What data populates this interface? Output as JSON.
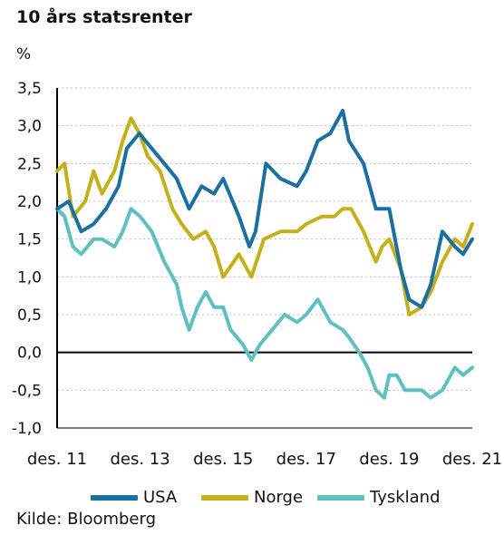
{
  "title": "10 års statsrenter",
  "unit": "%",
  "source": "Kilde: Bloomberg",
  "colors": {
    "USA": "#1a6fa3",
    "Norge": "#c4b11a",
    "Tyskland": "#5fc1bd",
    "grid": "#bdbdbd",
    "zero": "#000000"
  },
  "chart_data": {
    "type": "line",
    "title": "10 års statsrenter",
    "ylabel": "%",
    "xlabel": "",
    "ylim": [
      -1.0,
      3.5
    ],
    "yticks": [
      "3,5",
      "3,0",
      "2,5",
      "2,0",
      "1,5",
      "1,0",
      "0,5",
      "0,0",
      "-0,5",
      "-1,0"
    ],
    "ytick_values": [
      3.5,
      3.0,
      2.5,
      2.0,
      1.5,
      1.0,
      0.5,
      0.0,
      -0.5,
      -1.0
    ],
    "xticks": [
      "des. 11",
      "des. 13",
      "des. 15",
      "des. 17",
      "des. 19",
      "des. 21"
    ],
    "xlim": [
      2011.92,
      2021.92
    ],
    "grid": "horizontal dashed",
    "legend": "bottom",
    "series": [
      {
        "name": "USA",
        "x": [
          2011.92,
          2012.2,
          2012.5,
          2012.8,
          2013.1,
          2013.4,
          2013.6,
          2013.9,
          2014.2,
          2014.5,
          2014.8,
          2015.1,
          2015.4,
          2015.7,
          2015.92,
          2016.3,
          2016.55,
          2016.7,
          2016.95,
          2017.3,
          2017.7,
          2017.92,
          2018.2,
          2018.5,
          2018.8,
          2018.95,
          2019.3,
          2019.6,
          2019.92,
          2020.2,
          2020.4,
          2020.7,
          2020.92,
          2021.2,
          2021.5,
          2021.7,
          2021.92
        ],
        "y": [
          1.9,
          2.0,
          1.6,
          1.7,
          1.9,
          2.2,
          2.7,
          2.9,
          2.7,
          2.5,
          2.3,
          1.9,
          2.2,
          2.1,
          2.3,
          1.8,
          1.4,
          1.6,
          2.5,
          2.3,
          2.2,
          2.4,
          2.8,
          2.9,
          3.2,
          2.8,
          2.5,
          1.9,
          1.9,
          1.1,
          0.7,
          0.6,
          0.9,
          1.6,
          1.4,
          1.3,
          1.5
        ]
      },
      {
        "name": "Norge",
        "x": [
          2011.92,
          2012.1,
          2012.3,
          2012.6,
          2012.8,
          2013.0,
          2013.3,
          2013.5,
          2013.7,
          2013.9,
          2014.1,
          2014.4,
          2014.7,
          2014.92,
          2015.2,
          2015.5,
          2015.7,
          2015.92,
          2016.3,
          2016.6,
          2016.9,
          2017.3,
          2017.7,
          2017.92,
          2018.3,
          2018.6,
          2018.8,
          2019.0,
          2019.3,
          2019.6,
          2019.75,
          2019.92,
          2020.2,
          2020.4,
          2020.7,
          2020.92,
          2021.2,
          2021.5,
          2021.7,
          2021.92
        ],
        "y": [
          2.4,
          2.5,
          1.8,
          2.0,
          2.4,
          2.1,
          2.4,
          2.8,
          3.1,
          2.9,
          2.6,
          2.4,
          1.9,
          1.7,
          1.5,
          1.6,
          1.4,
          1.0,
          1.3,
          1.0,
          1.5,
          1.6,
          1.6,
          1.7,
          1.8,
          1.8,
          1.9,
          1.9,
          1.6,
          1.2,
          1.4,
          1.5,
          1.1,
          0.5,
          0.6,
          0.8,
          1.2,
          1.5,
          1.4,
          1.7
        ]
      },
      {
        "name": "Tyskland",
        "x": [
          2011.92,
          2012.1,
          2012.3,
          2012.5,
          2012.8,
          2013.0,
          2013.3,
          2013.5,
          2013.7,
          2013.92,
          2014.2,
          2014.5,
          2014.8,
          2014.92,
          2015.1,
          2015.3,
          2015.5,
          2015.7,
          2015.92,
          2016.1,
          2016.4,
          2016.6,
          2016.8,
          2017.1,
          2017.4,
          2017.7,
          2017.92,
          2018.2,
          2018.5,
          2018.8,
          2018.95,
          2019.2,
          2019.4,
          2019.6,
          2019.8,
          2019.92,
          2020.1,
          2020.3,
          2020.5,
          2020.7,
          2020.92,
          2021.2,
          2021.5,
          2021.7,
          2021.92
        ],
        "y": [
          1.9,
          1.8,
          1.4,
          1.3,
          1.5,
          1.5,
          1.4,
          1.6,
          1.9,
          1.8,
          1.6,
          1.2,
          0.9,
          0.6,
          0.3,
          0.6,
          0.8,
          0.6,
          0.6,
          0.3,
          0.1,
          -0.1,
          0.1,
          0.3,
          0.5,
          0.4,
          0.5,
          0.7,
          0.4,
          0.3,
          0.2,
          0.0,
          -0.2,
          -0.5,
          -0.6,
          -0.3,
          -0.3,
          -0.5,
          -0.5,
          -0.5,
          -0.6,
          -0.5,
          -0.2,
          -0.3,
          -0.2
        ]
      }
    ]
  }
}
